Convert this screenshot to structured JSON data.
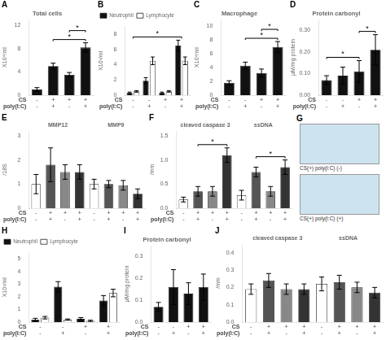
{
  "chart_data": [
    {
      "type": "bar",
      "title": "Total cells",
      "ylabel": "X10⁴/ml",
      "xlabel": [
        "CS",
        "poly(I:C)"
      ],
      "categories": [
        [
          "-",
          "-"
        ],
        [
          "+",
          "+"
        ],
        [
          "+",
          "-"
        ],
        [
          "+",
          "+"
        ]
      ],
      "values": [
        1.0,
        5.0,
        3.5,
        8.2
      ],
      "errors": [
        0.3,
        0.5,
        0.4,
        0.8
      ],
      "color": "#111111",
      "ylim": [
        0,
        13
      ],
      "yticks": [
        0,
        4,
        8,
        12
      ],
      "grid": false,
      "annotations": [
        {
          "text": "A"
        },
        {
          "text": "*",
          "x": [
            1,
            3
          ]
        },
        {
          "text": "*",
          "x": [
            2,
            3
          ]
        }
      ]
    },
    {
      "type": "bar",
      "ylabel": "X10³/ml",
      "xlabel": [
        "CS",
        "poly(I:C)"
      ],
      "categories": [
        [
          "-",
          "-"
        ],
        [
          "-",
          "+"
        ],
        [
          "+",
          "-"
        ],
        [
          "+",
          "+"
        ]
      ],
      "series": [
        {
          "name": "Neutrophil",
          "color": "#111111",
          "values": [
            0.3,
            1.9,
            0.3,
            6.5
          ],
          "errors": [
            0.1,
            0.4,
            0.1,
            0.7
          ]
        },
        {
          "name": "Lymphocyte",
          "color": "#ffffff",
          "values": [
            0.5,
            4.5,
            0.5,
            4.5
          ],
          "errors": [
            0.1,
            0.5,
            0.1,
            0.5
          ]
        }
      ],
      "legend": "upper left",
      "ylim": [
        0,
        9
      ],
      "yticks": [
        0,
        2,
        4,
        6,
        8
      ],
      "grid": false,
      "annotations": [
        {
          "text": "B"
        },
        {
          "text": "*",
          "x": [
            0,
            3
          ]
        }
      ]
    },
    {
      "type": "bar",
      "title": "Macrophage",
      "ylabel": "X10⁴/ml",
      "xlabel": [
        "CS",
        "poly(I:C)"
      ],
      "categories": [
        [
          "-",
          "-"
        ],
        [
          "-",
          "+"
        ],
        [
          "+",
          "-"
        ],
        [
          "+",
          "+"
        ]
      ],
      "values": [
        1.8,
        4.3,
        3.2,
        7.0
      ],
      "errors": [
        0.3,
        0.5,
        0.6,
        0.8
      ],
      "color": "#111111",
      "ylim": [
        0,
        11
      ],
      "yticks": [
        0,
        2,
        4,
        6,
        8,
        10
      ],
      "grid": false,
      "annotations": [
        {
          "text": "C"
        },
        {
          "text": "*",
          "x": [
            1,
            3
          ]
        },
        {
          "text": "*",
          "x": [
            2,
            3
          ]
        }
      ]
    },
    {
      "type": "bar",
      "title": "Protein carbonyl",
      "ylabel": "μM/mg protein",
      "xlabel": [
        "CS",
        "poly(I:C)"
      ],
      "categories": [
        [
          "-",
          "-"
        ],
        [
          "-",
          "+"
        ],
        [
          "+",
          "-"
        ],
        [
          "+",
          "+"
        ]
      ],
      "values": [
        0.07,
        0.09,
        0.11,
        0.21
      ],
      "errors": [
        0.02,
        0.04,
        0.05,
        0.07
      ],
      "color": "#111111",
      "ylim": [
        0,
        0.35
      ],
      "yticks": [
        {
          "value": 0,
          "label": "0.00"
        },
        {
          "value": 0.1,
          "label": "0.10"
        },
        {
          "value": 0.2,
          "label": "0.20"
        },
        {
          "value": 0.3,
          "label": "0.30"
        }
      ],
      "grid": false,
      "annotations": [
        {
          "text": "D"
        },
        {
          "text": "*",
          "x": [
            0,
            2
          ]
        },
        {
          "text": "*",
          "x": [
            2,
            3
          ]
        }
      ]
    },
    {
      "type": "bar",
      "title": [
        "MMP12",
        "MMP9"
      ],
      "ylabel": "/18S",
      "xlabel": [
        "CS",
        "poly(I:C)"
      ],
      "categories": [
        [
          "-",
          "-"
        ],
        [
          "+",
          "+"
        ],
        [
          "+",
          "-"
        ],
        [
          "+",
          "+"
        ],
        [
          "-",
          "-"
        ],
        [
          "+",
          "+"
        ],
        [
          "+",
          "-"
        ],
        [
          "+",
          "+"
        ]
      ],
      "values": [
        1.0,
        1.8,
        1.5,
        1.5,
        1.0,
        1.0,
        0.95,
        0.6
      ],
      "errors": [
        0.4,
        0.7,
        0.3,
        0.3,
        0.2,
        0.15,
        0.2,
        0.2
      ],
      "colors": [
        "#ffffff",
        "#555555",
        "#888888",
        "#333333",
        "#ffffff",
        "#555555",
        "#888888",
        "#333333"
      ],
      "ylim": [
        0,
        3.2
      ],
      "yticks": [
        0,
        1,
        2,
        3
      ],
      "grid": false,
      "annotations": [
        {
          "text": "E"
        }
      ]
    },
    {
      "type": "bar",
      "title": [
        "cleaved caspase 3",
        "ssDNA"
      ],
      "ylabel": "/mm",
      "xlabel": [
        "CS",
        "poly(I:C)"
      ],
      "categories": [
        [
          "-",
          "-"
        ],
        [
          "+",
          "+"
        ],
        [
          "+",
          "-"
        ],
        [
          "+",
          "+"
        ],
        [
          "-",
          "-"
        ],
        [
          "+",
          "+"
        ],
        [
          "+",
          "-"
        ],
        [
          "+",
          "+"
        ]
      ],
      "values": [
        0.18,
        0.35,
        0.35,
        1.1,
        0.27,
        0.75,
        0.35,
        0.85
      ],
      "errors": [
        0.05,
        0.1,
        0.1,
        0.15,
        0.1,
        0.1,
        0.1,
        0.15
      ],
      "colors": [
        "#ffffff",
        "#555555",
        "#888888",
        "#333333",
        "#ffffff",
        "#555555",
        "#888888",
        "#333333"
      ],
      "ylim": [
        0,
        1.6
      ],
      "yticks": [
        {
          "value": 0,
          "label": "0.0"
        },
        0.5,
        {
          "value": 1,
          "label": "1.0"
        },
        1.5
      ],
      "grid": false,
      "annotations": [
        {
          "text": "F"
        },
        {
          "text": "*",
          "x": [
            1,
            3
          ]
        },
        {
          "text": "*",
          "x": [
            5,
            7
          ]
        }
      ]
    },
    {
      "type": "image",
      "color": "#cde4f0",
      "annotations": [
        {
          "text": "G"
        },
        {
          "text": "CS(+) poly(I:C) (-)"
        },
        {
          "text": "CS(+) poly(I:C) (+)"
        }
      ]
    },
    {
      "type": "bar",
      "ylabel": "X10³/ml",
      "xlabel": [
        "CS",
        "poly(I:C)"
      ],
      "categories": [
        [
          "-",
          "-"
        ],
        [
          "-",
          "+"
        ],
        [
          "+",
          "-"
        ],
        [
          "+",
          "+"
        ]
      ],
      "series": [
        {
          "name": "Neutrophil",
          "color": "#111111",
          "values": [
            0.2,
            2.8,
            0.25,
            1.7
          ],
          "errors": [
            0.1,
            0.4,
            0.1,
            0.4
          ]
        },
        {
          "name": "Lymphocyte",
          "color": "#ffffff",
          "values": [
            0.35,
            0.2,
            0.1,
            2.3
          ],
          "errors": [
            0.1,
            0.05,
            0.05,
            0.3
          ]
        }
      ],
      "legend": "upper left",
      "ylim": [
        0,
        5.5
      ],
      "yticks": [
        0,
        1,
        2,
        3,
        4,
        5
      ],
      "grid": false,
      "annotations": [
        {
          "text": "H"
        }
      ]
    },
    {
      "type": "bar",
      "title": "Protein carbonyl",
      "ylabel": "μM/mg protein",
      "xlabel": [
        "CS",
        "poly(I:C)"
      ],
      "categories": [
        [
          "-",
          "-"
        ],
        [
          "-",
          "+"
        ],
        [
          "+",
          "-"
        ],
        [
          "+",
          "+"
        ]
      ],
      "values": [
        0.07,
        0.16,
        0.13,
        0.16
      ],
      "errors": [
        0.02,
        0.08,
        0.05,
        0.06
      ],
      "color": "#111111",
      "ylim": [
        0,
        0.35
      ],
      "yticks": [
        {
          "value": 0,
          "label": "0.0"
        },
        0.1,
        0.2,
        0.3
      ],
      "grid": false,
      "annotations": [
        {
          "text": "I"
        }
      ]
    },
    {
      "type": "bar",
      "title": [
        "cleaved caspase 3",
        "ssDNA"
      ],
      "ylabel": "/mm",
      "xlabel": [
        "CS",
        "poly(I:C)"
      ],
      "categories": [
        [
          "-",
          "-"
        ],
        [
          "+",
          "+"
        ],
        [
          "+",
          "-"
        ],
        [
          "+",
          "+"
        ],
        [
          "-",
          "-"
        ],
        [
          "+",
          "+"
        ],
        [
          "+",
          "-"
        ],
        [
          "+",
          "+"
        ]
      ],
      "values": [
        0.19,
        0.24,
        0.19,
        0.19,
        0.22,
        0.23,
        0.2,
        0.17
      ],
      "errors": [
        0.03,
        0.04,
        0.03,
        0.03,
        0.04,
        0.04,
        0.03,
        0.03
      ],
      "colors": [
        "#ffffff",
        "#555555",
        "#888888",
        "#333333",
        "#ffffff",
        "#555555",
        "#888888",
        "#333333"
      ],
      "ylim": [
        0,
        0.45
      ],
      "yticks": [
        {
          "value": 0,
          "label": "0.0"
        },
        0.1,
        0.2,
        0.3,
        0.4
      ],
      "grid": false,
      "annotations": [
        {
          "text": "J"
        }
      ]
    }
  ]
}
